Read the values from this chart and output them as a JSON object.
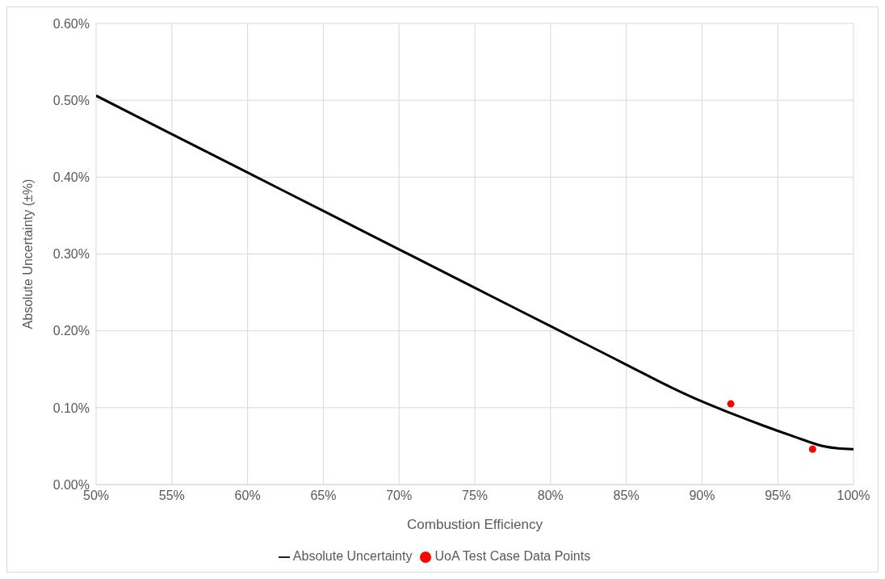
{
  "chart_data": {
    "type": "line",
    "xlabel": "Combustion Efficiency",
    "ylabel": "Absolute Uncertainty (±%)",
    "xlim": [
      50,
      100
    ],
    "xticks": [
      {
        "value": 50,
        "label": "50%"
      },
      {
        "value": 55,
        "label": "55%"
      },
      {
        "value": 60,
        "label": "60%"
      },
      {
        "value": 65,
        "label": "65%"
      },
      {
        "value": 70,
        "label": "70%"
      },
      {
        "value": 75,
        "label": "75%"
      },
      {
        "value": 80,
        "label": "80%"
      },
      {
        "value": 85,
        "label": "85%"
      },
      {
        "value": 90,
        "label": "90%"
      },
      {
        "value": 95,
        "label": "95%"
      },
      {
        "value": 100,
        "label": "100%"
      }
    ],
    "ylim": [
      0,
      0.6
    ],
    "yticks": [
      {
        "value": 0,
        "label": "0.00%"
      },
      {
        "value": 0.1,
        "label": "0.10%"
      },
      {
        "value": 0.2,
        "label": "0.20%"
      },
      {
        "value": 0.3,
        "label": "0.30%"
      },
      {
        "value": 0.4,
        "label": "0.40%"
      },
      {
        "value": 0.5,
        "label": "0.50%"
      },
      {
        "value": 0.6,
        "label": "0.60%"
      }
    ],
    "grid": true,
    "legend": "bottom",
    "series": [
      {
        "name": "Absolute Uncertainty",
        "color": "#000000",
        "marker": "none",
        "x": [
          50,
          55,
          60,
          65,
          70,
          75,
          80,
          85,
          88,
          90,
          92,
          94,
          96,
          98,
          99,
          100
        ],
        "values": [
          0.506,
          0.456,
          0.406,
          0.356,
          0.306,
          0.256,
          0.206,
          0.156,
          0.126,
          0.108,
          0.092,
          0.077,
          0.063,
          0.05,
          0.047,
          0.046
        ]
      },
      {
        "name": "UoA Test Case Data Points",
        "type": "scatter",
        "color": "#ff0000",
        "marker": "circle",
        "x": [
          91.9,
          97.3
        ],
        "values": [
          0.105,
          0.046
        ]
      }
    ]
  }
}
